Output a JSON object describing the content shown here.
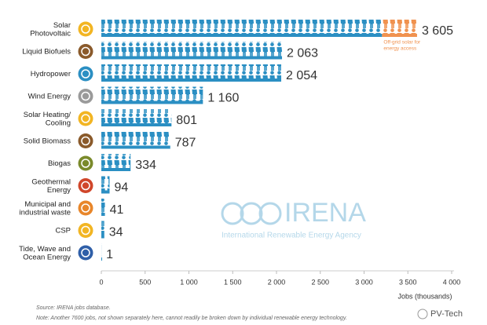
{
  "chart_data": {
    "type": "pictogram-bar",
    "categories": [
      "Solar\nPhotovoltaic",
      "Liquid Biofuels",
      "Hydropower",
      "Wind Energy",
      "Solar Heating/\nCooling",
      "Solid Biomass",
      "Biogas",
      "Geothermal\nEnergy",
      "Municipal and\nindustrial waste",
      "CSP",
      "Tide, Wave and\nOcean Energy"
    ],
    "values": [
      3605,
      2063,
      2054,
      1160,
      801,
      787,
      334,
      94,
      41,
      34,
      1
    ],
    "value_labels": [
      "3 605",
      "2 063",
      "2 054",
      "1 160",
      "801",
      "787",
      "334",
      "94",
      "41",
      "34",
      "1"
    ],
    "color": "#2b8fc3",
    "icon_colors": [
      "#f2b523",
      "#8a5a2b",
      "#2b8fc3",
      "#9a9a9a",
      "#f2b523",
      "#8a5a2b",
      "#7a8a2b",
      "#d0462a",
      "#e8862a",
      "#f2b523",
      "#2f5fa8"
    ],
    "highlight": {
      "category": 0,
      "value": 400,
      "color": "#f0924f",
      "label": [
        "Off-grid solar for",
        "energy access"
      ]
    },
    "xlim": [
      0,
      4000
    ],
    "xticks": [
      0,
      500,
      {
        "value": 1000,
        "label": "1 000"
      },
      {
        "value": 1500,
        "label": "1 500"
      },
      {
        "value": 2000,
        "label": "2 000"
      },
      {
        "value": 2500,
        "label": "2 500"
      },
      {
        "value": 3000,
        "label": "3 000"
      },
      {
        "value": 3500,
        "label": "3 500"
      },
      {
        "value": 4000,
        "label": "4 000"
      }
    ],
    "xlabel": "Jobs (thousands)",
    "source": "Source: IRENA jobs database.",
    "note": "Note: Another 7600 jobs, not shown separately here, cannot readily be broken down by individual renewable energy technology.",
    "watermark": {
      "title": "IRENA",
      "subtitle": "International Renewable Energy Agency"
    },
    "credit": "PV-Tech"
  }
}
